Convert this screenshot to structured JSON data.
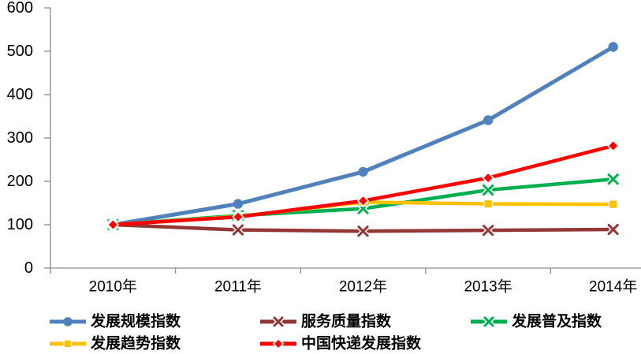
{
  "chart_data": {
    "type": "line",
    "title": "",
    "categories": [
      "2010年",
      "2011年",
      "2012年",
      "2013年",
      "2014年"
    ],
    "series": [
      {
        "name": "发展规模指数",
        "color": "#4F81BD",
        "marker": "circle",
        "values": [
          100,
          148,
          222,
          341,
          510
        ]
      },
      {
        "name": "服务质量指数",
        "color": "#943634",
        "marker": "x",
        "values": [
          100,
          88,
          85,
          87,
          89
        ]
      },
      {
        "name": "发展普及指数",
        "color": "#00B050",
        "marker": "x",
        "values": [
          100,
          121,
          137,
          180,
          205
        ]
      },
      {
        "name": "发展趋势指数",
        "color": "#FFC000",
        "marker": "square",
        "values": [
          100,
          119,
          152,
          148,
          147
        ]
      },
      {
        "name": "中国快递发展指数",
        "color": "#FF0000",
        "marker": "diamond",
        "values": [
          100,
          118,
          155,
          208,
          282
        ]
      }
    ],
    "ylim": [
      0,
      600
    ],
    "y_tick_step": 100,
    "y_tick_labels": [
      "0",
      "100",
      "200",
      "300",
      "400",
      "500",
      "600"
    ],
    "grid": false,
    "legend_position": "bottom",
    "legend_rows": [
      [
        0,
        1,
        2
      ],
      [
        3,
        4
      ]
    ],
    "axis_color": "#8C8C8C",
    "text_color": "#000000",
    "background": "#FFFFFF"
  }
}
